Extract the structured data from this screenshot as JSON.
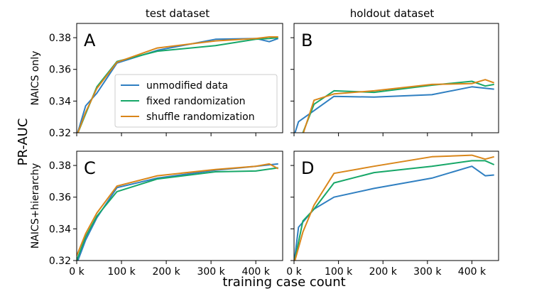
{
  "figure": {
    "ylabel": "PR-AUC",
    "xlabel": "training case count",
    "col_titles": [
      "test dataset",
      "holdout dataset"
    ],
    "row_labels": [
      "NAICS only",
      "NAICS+hierarchy"
    ],
    "legend": [
      "unmodified data",
      "fixed randomization",
      "shuffle randomization"
    ],
    "colors": {
      "unmodified data": "#2f7fc1",
      "fixed randomization": "#17a768",
      "shuffle randomization": "#d9861a"
    },
    "xticks": [
      "0 k",
      "100 k",
      "200 k",
      "300 k",
      "400 k"
    ],
    "yticks": [
      "0.32",
      "0.34",
      "0.36",
      "0.38"
    ]
  },
  "chart_data": [
    {
      "type": "line",
      "panel": "A",
      "xlim": [
        0,
        460000
      ],
      "ylim": [
        0.32,
        0.389
      ],
      "series": [
        {
          "name": "unmodified data",
          "x": [
            0,
            20000,
            45000,
            90000,
            180000,
            310000,
            400000,
            430000,
            450000
          ],
          "y": [
            0.318,
            0.337,
            0.345,
            0.364,
            0.372,
            0.379,
            0.3795,
            0.3775,
            0.3795
          ]
        },
        {
          "name": "fixed randomization",
          "x": [
            0,
            20000,
            45000,
            90000,
            180000,
            310000,
            400000,
            430000,
            450000
          ],
          "y": [
            0.318,
            0.332,
            0.349,
            0.365,
            0.3715,
            0.375,
            0.379,
            0.3795,
            0.38
          ]
        },
        {
          "name": "shuffle randomization",
          "x": [
            0,
            20000,
            45000,
            90000,
            180000,
            310000,
            400000,
            430000,
            450000
          ],
          "y": [
            0.318,
            0.333,
            0.348,
            0.3645,
            0.3735,
            0.378,
            0.3795,
            0.3805,
            0.3805
          ]
        }
      ]
    },
    {
      "type": "line",
      "panel": "B",
      "xlim": [
        0,
        460000
      ],
      "ylim": [
        0.32,
        0.389
      ],
      "series": [
        {
          "name": "unmodified data",
          "x": [
            0,
            10000,
            45000,
            90000,
            180000,
            310000,
            400000,
            450000
          ],
          "y": [
            0.318,
            0.327,
            0.334,
            0.343,
            0.3425,
            0.344,
            0.349,
            0.3475
          ]
        },
        {
          "name": "fixed randomization",
          "x": [
            10000,
            20000,
            45000,
            90000,
            180000,
            310000,
            400000,
            430000,
            450000
          ],
          "y": [
            0.318,
            0.32,
            0.338,
            0.3465,
            0.3455,
            0.35,
            0.3525,
            0.3495,
            0.3505
          ]
        },
        {
          "name": "shuffle randomization",
          "x": [
            10000,
            20000,
            45000,
            90000,
            180000,
            310000,
            400000,
            430000,
            450000
          ],
          "y": [
            0.318,
            0.319,
            0.3405,
            0.3445,
            0.3465,
            0.3505,
            0.351,
            0.3535,
            0.3515
          ]
        }
      ]
    },
    {
      "type": "line",
      "panel": "C",
      "xlim": [
        0,
        460000
      ],
      "ylim": [
        0.32,
        0.389
      ],
      "series": [
        {
          "name": "unmodified data",
          "x": [
            0,
            20000,
            45000,
            90000,
            180000,
            310000,
            400000,
            450000
          ],
          "y": [
            0.318,
            0.333,
            0.347,
            0.366,
            0.372,
            0.377,
            0.3795,
            0.381
          ]
        },
        {
          "name": "fixed randomization",
          "x": [
            0,
            20000,
            45000,
            90000,
            180000,
            310000,
            400000,
            450000
          ],
          "y": [
            0.32,
            0.335,
            0.348,
            0.3635,
            0.3715,
            0.376,
            0.3765,
            0.3785
          ]
        },
        {
          "name": "shuffle randomization",
          "x": [
            0,
            20000,
            45000,
            90000,
            180000,
            310000,
            400000,
            430000,
            450000
          ],
          "y": [
            0.323,
            0.337,
            0.35,
            0.367,
            0.3735,
            0.3775,
            0.3795,
            0.381,
            0.378
          ]
        }
      ]
    },
    {
      "type": "line",
      "panel": "D",
      "xlim": [
        0,
        460000
      ],
      "ylim": [
        0.32,
        0.389
      ],
      "series": [
        {
          "name": "unmodified data",
          "x": [
            0,
            10000,
            45000,
            90000,
            180000,
            310000,
            400000,
            430000,
            450000
          ],
          "y": [
            0.318,
            0.341,
            0.3525,
            0.36,
            0.3655,
            0.372,
            0.3795,
            0.3735,
            0.374
          ]
        },
        {
          "name": "fixed randomization",
          "x": [
            0,
            20000,
            45000,
            90000,
            180000,
            310000,
            400000,
            430000,
            450000
          ],
          "y": [
            0.318,
            0.345,
            0.3525,
            0.369,
            0.3755,
            0.3795,
            0.383,
            0.383,
            0.3805
          ]
        },
        {
          "name": "shuffle randomization",
          "x": [
            0,
            20000,
            45000,
            90000,
            180000,
            310000,
            400000,
            430000,
            450000
          ],
          "y": [
            0.318,
            0.338,
            0.355,
            0.375,
            0.3795,
            0.3855,
            0.3865,
            0.384,
            0.3855
          ]
        }
      ]
    }
  ]
}
